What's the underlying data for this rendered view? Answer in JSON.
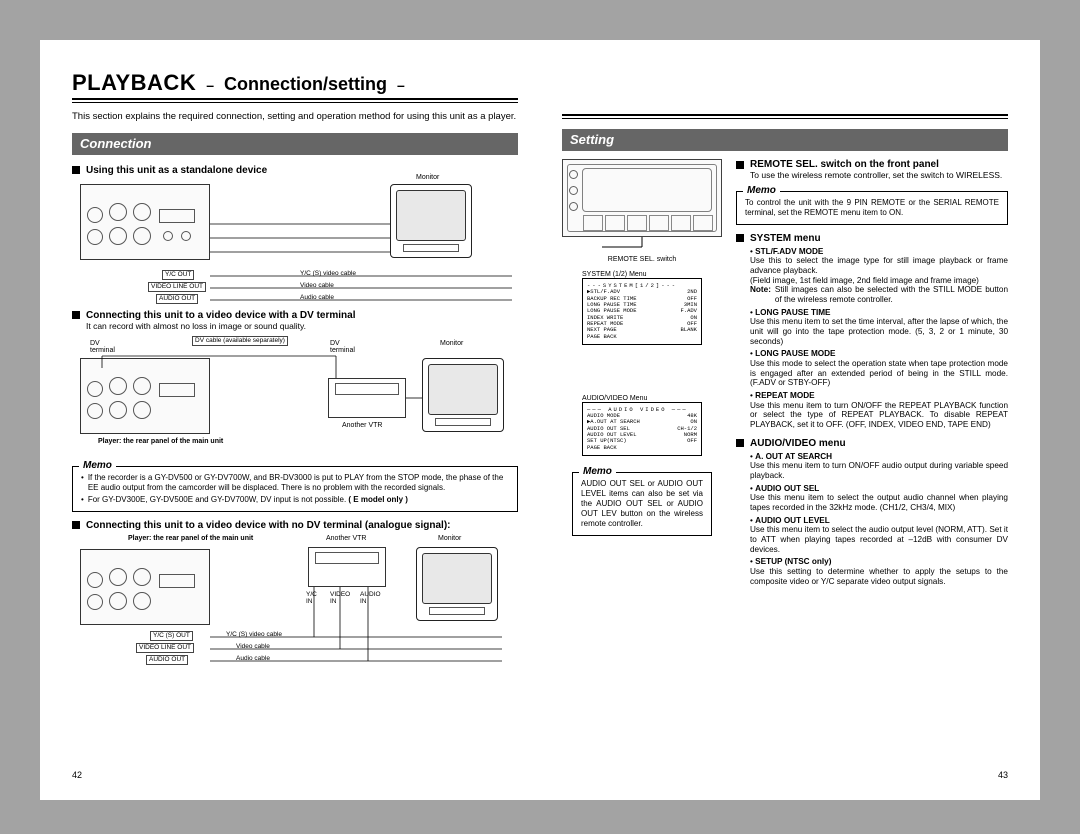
{
  "page_left_num": "42",
  "page_right_num": "43",
  "title": {
    "main": "PLAYBACK",
    "sub": "Connection/setting"
  },
  "intro": "This section explains the required connection, setting and operation method for using this unit as a player.",
  "section_connection": "Connection",
  "section_setting": "Setting",
  "conn": {
    "h1": "Using this unit as a standalone device",
    "d1": {
      "monitor": "Monitor",
      "yc_out": "Y/C OUT",
      "yc_cable": "Y/C (S) video cable",
      "video_line_out": "VIDEO LINE OUT",
      "video_cable": "Video cable",
      "audio_out": "AUDIO OUT",
      "audio_cable": "Audio cable"
    },
    "h2": "Connecting this unit to a video device with a DV terminal",
    "h2_body": "It can record with almost no loss in image or sound quality.",
    "d2": {
      "dv_cable": "DV cable (available separately)",
      "dv_terminal": "DV\nterminal",
      "another_vtr": "Another VTR",
      "monitor": "Monitor",
      "player_caption": "Player: the rear panel of the main unit"
    },
    "memo1": {
      "title": "Memo",
      "b1": "If the recorder is a GY-DV500 or GY-DV700W, and BR-DV3000 is put to PLAY from the STOP mode, the phase of the EE audio output from the camcorder will be displaced. There is no problem with the recorded signals.",
      "b2": "For GY-DV300E, GY-DV500E and GY-DV700W, DV input is not possible.",
      "b2_tag": "( E model only )"
    },
    "h3": "Connecting this unit to a video device with no DV terminal (analogue signal):",
    "d3": {
      "player_caption": "Player: the rear panel of the main unit",
      "another_vtr": "Another VTR",
      "monitor": "Monitor",
      "yc_in": "Y/C\nIN",
      "video_in": "VIDEO\nIN",
      "audio_in": "AUDIO\nIN",
      "yc_out": "Y/C (S) OUT",
      "yc_cable": "Y/C (S) video cable",
      "video_line_out": "VIDEO LINE OUT",
      "video_cable": "Video cable",
      "audio_out": "AUDIO OUT",
      "audio_cable": "Audio cable"
    }
  },
  "setting": {
    "remote_switch_lbl": "REMOTE SEL. switch",
    "system_menu_lbl": "SYSTEM (1/2) Menu",
    "av_menu_lbl": "AUDIO/VIDEO Menu",
    "system_menu": {
      "title": "---SYSTEM[1/2]---",
      "rows": [
        [
          "▶STL/F.ADV",
          "2ND"
        ],
        [
          "BACKUP REC TIME",
          "OFF"
        ],
        [
          "LONG PAUSE TIME",
          "3MIN"
        ],
        [
          "LONG PAUSE MODE",
          "F.ADV"
        ],
        [
          "INDEX WRITE",
          "ON"
        ],
        [
          "REPEAT MODE",
          "OFF"
        ],
        [
          "NEXT PAGE",
          "BLANK"
        ],
        [
          "PAGE BACK",
          ""
        ]
      ]
    },
    "av_menu": {
      "title": "─── AUDIO VIDEO ───",
      "rows": [
        [
          "AUDIO MODE",
          "48K"
        ],
        [
          "▶A.OUT AT SEARCH",
          "ON"
        ],
        [
          "AUDIO OUT SEL",
          "CH-1/2"
        ],
        [
          "AUDIO OUT LEVEL",
          "NORM"
        ],
        [
          "SET UP(NTSC)",
          "OFF"
        ],
        [
          "PAGE BACK",
          ""
        ]
      ]
    },
    "memo_av": {
      "title": "Memo",
      "body": "AUDIO OUT SEL or AUDIO OUT LEVEL items can also be set via the AUDIO OUT SEL or AUDIO OUT LEV button on the wireless remote controller."
    },
    "remote_h": "REMOTE SEL. switch on the front panel",
    "remote_body": "To use the wireless remote controller, set the switch to WIRELESS.",
    "memo_remote": {
      "title": "Memo",
      "body": "To control the unit with the 9 PIN REMOTE or the SERIAL REMOTE terminal, set the REMOTE menu item to ON."
    },
    "system_h": "SYSTEM menu",
    "system_items": [
      {
        "k": "STL/F.ADV MODE",
        "v": "Use this to select the image type for still image playback or frame advance playback.\n(Field image, 1st field image, 2nd field image and frame image)",
        "note_k": "Note:",
        "note_v": "Still images can also be selected with the STILL MODE button of the wireless remote controller."
      },
      {
        "k": "LONG PAUSE TIME",
        "v": "Use this menu item to set the time interval, after the lapse of which, the unit will go into the tape protection mode. (5, 3, 2 or 1 minute, 30 seconds)"
      },
      {
        "k": "LONG PAUSE MODE",
        "v": "Use this mode to select the operation state when tape protection mode is engaged after an extended period of being in the STILL mode. (F.ADV or STBY-OFF)"
      },
      {
        "k": "REPEAT MODE",
        "v": "Use this menu item to turn ON/OFF the REPEAT PLAYBACK function or select the type of REPEAT PLAYBACK. To disable REPEAT PLAYBACK, set it to OFF. (OFF, INDEX, VIDEO END, TAPE END)"
      }
    ],
    "av_h": "AUDIO/VIDEO menu",
    "av_items": [
      {
        "k": "A. OUT AT SEARCH",
        "v": "Use this menu item to turn ON/OFF audio output during variable speed playback."
      },
      {
        "k": "AUDIO OUT SEL",
        "v": "Use this menu item to select the output audio channel when playing tapes recorded in the 32kHz mode. (CH1/2, CH3/4, MIX)"
      },
      {
        "k": "AUDIO OUT LEVEL",
        "v": "Use this menu item to select the audio output level (NORM, ATT). Set it to ATT when playing tapes recorded at –12dB with consumer DV devices."
      },
      {
        "k": "SETUP (NTSC only)",
        "v": "Use this setting to determine whether to apply the setups to the composite video or Y/C separate video output signals."
      }
    ]
  }
}
